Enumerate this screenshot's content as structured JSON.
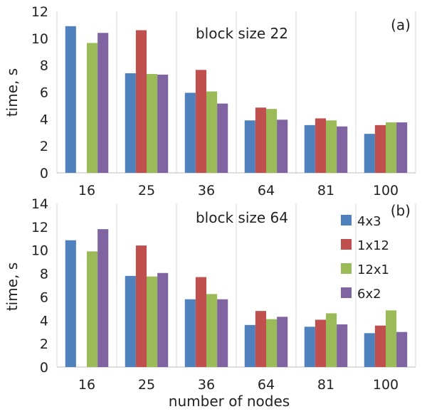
{
  "chart_data": [
    {
      "type": "bar",
      "panel_label": "(a)",
      "title": "block size 22",
      "categories": [
        "16",
        "25",
        "36",
        "64",
        "81",
        "100"
      ],
      "ylabel": "time, s",
      "ylim": [
        0,
        12
      ],
      "yticks": [
        0,
        2,
        4,
        6,
        8,
        10,
        12
      ],
      "grid": "vertical lines between categories",
      "series": [
        {
          "name": "4x3",
          "color": "#4f81bd",
          "values": [
            10.9,
            7.4,
            5.95,
            3.9,
            3.55,
            2.9
          ]
        },
        {
          "name": "1x12",
          "color": "#c0504d",
          "values": [
            null,
            10.6,
            7.65,
            4.85,
            4.05,
            3.55
          ]
        },
        {
          "name": "12x1",
          "color": "#9bbb59",
          "values": [
            9.65,
            7.35,
            6.05,
            4.75,
            3.9,
            3.75
          ]
        },
        {
          "name": "6x2",
          "color": "#8064a2",
          "values": [
            10.4,
            7.3,
            5.15,
            3.95,
            3.45,
            3.75
          ]
        }
      ]
    },
    {
      "type": "bar",
      "panel_label": "(b)",
      "title": "block size 64",
      "categories": [
        "16",
        "25",
        "36",
        "64",
        "81",
        "100"
      ],
      "xlabel": "number of nodes",
      "ylabel": "time, s",
      "ylim": [
        0,
        14
      ],
      "yticks": [
        0,
        2,
        4,
        6,
        8,
        10,
        12,
        14
      ],
      "grid": "vertical lines between categories",
      "legend": "top-right",
      "series": [
        {
          "name": "4x3",
          "color": "#4f81bd",
          "values": [
            10.85,
            7.8,
            5.8,
            3.6,
            3.45,
            2.9
          ]
        },
        {
          "name": "1x12",
          "color": "#c0504d",
          "values": [
            null,
            10.4,
            7.7,
            4.8,
            4.05,
            3.55
          ]
        },
        {
          "name": "12x1",
          "color": "#9bbb59",
          "values": [
            9.9,
            7.75,
            6.25,
            4.1,
            4.6,
            4.85
          ]
        },
        {
          "name": "6x2",
          "color": "#8064a2",
          "values": [
            11.8,
            8.05,
            5.8,
            4.3,
            3.65,
            3.0
          ]
        }
      ]
    }
  ]
}
